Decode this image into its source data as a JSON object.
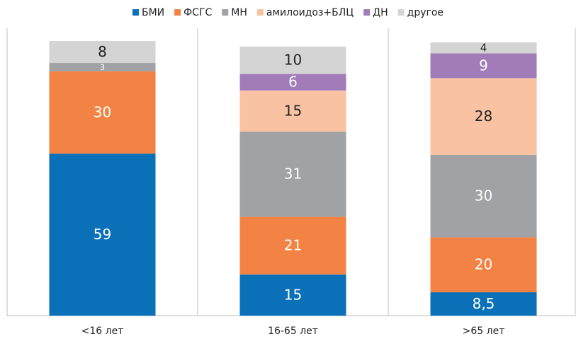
{
  "chart_data": {
    "type": "stacked-bar",
    "categories": [
      "<16 лет",
      "16-65 лет",
      ">65 лет"
    ],
    "series": [
      {
        "name": "БМИ",
        "color": "#0a71b8",
        "values": [
          59,
          15,
          8.5
        ],
        "value_labels": [
          "59",
          "15",
          "8,5"
        ]
      },
      {
        "name": "ФСГС",
        "color": "#f38344",
        "values": [
          30,
          21,
          20
        ]
      },
      {
        "name": "МН",
        "color": "#a0a2a5",
        "values": [
          3,
          31,
          30
        ]
      },
      {
        "name": "амилоидоз+БЛЦ",
        "color": "#f9c3a3",
        "values": [
          null,
          15,
          28
        ]
      },
      {
        "name": "ДН",
        "color": "#a27bb9",
        "values": [
          null,
          6,
          9
        ]
      },
      {
        "name": "другое",
        "color": "#d4d4d4",
        "values": [
          8,
          10,
          4
        ]
      }
    ],
    "ylim": [
      0,
      100
    ]
  }
}
